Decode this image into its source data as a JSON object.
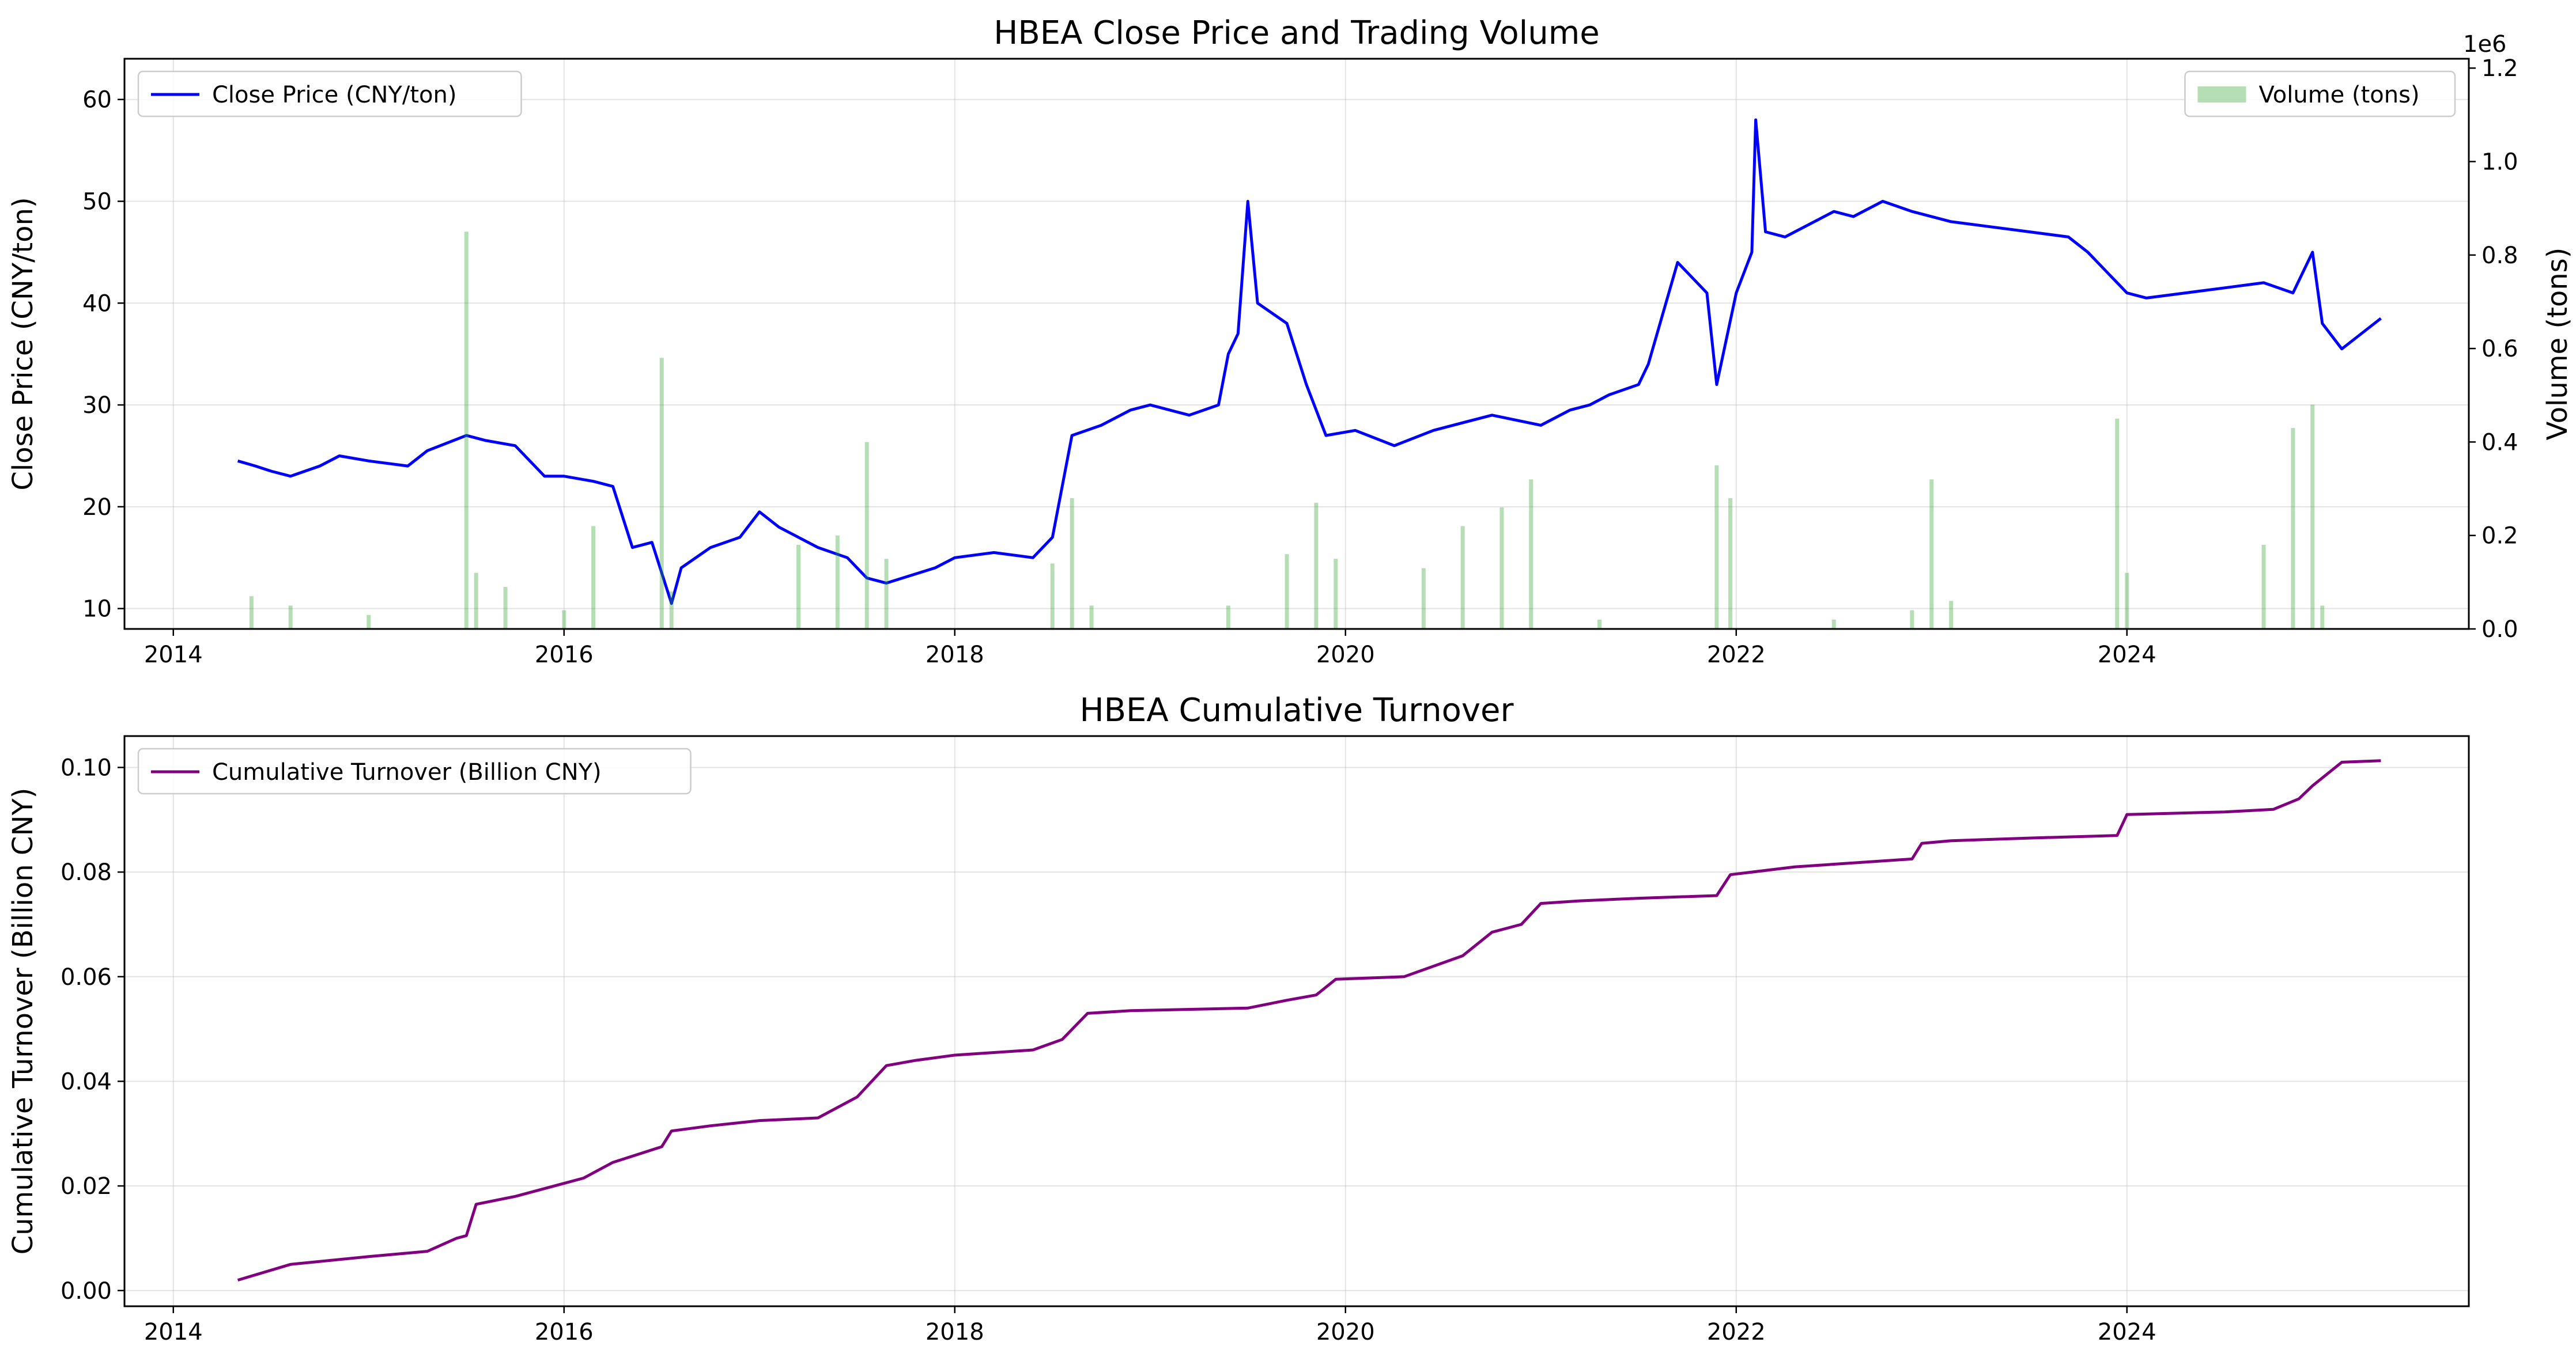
{
  "chart_data": [
    {
      "type": "line",
      "title": "HBEA Close Price and Trading Volume",
      "xlabel": "",
      "ylabel": "Close Price (CNY/ton)",
      "y2label": "Volume (tons)",
      "y2_offset_text": "1e6",
      "xlim": [
        2013.75,
        2025.75
      ],
      "ylim": [
        8,
        64
      ],
      "y2lim": [
        0,
        1.22
      ],
      "x_ticks": [
        2014,
        2016,
        2018,
        2020,
        2022,
        2024
      ],
      "y_ticks": [
        10,
        20,
        30,
        40,
        50,
        60
      ],
      "y2_ticks": [
        0.0,
        0.2,
        0.4,
        0.6,
        0.8,
        1.0,
        1.2
      ],
      "grid": true,
      "legend": [
        {
          "label": "Close Price (CNY/ton)",
          "placement": "upper-left",
          "kind": "line"
        },
        {
          "label": "Volume (tons)",
          "placement": "upper-right",
          "kind": "patch"
        }
      ],
      "series": [
        {
          "name": "Close Price (CNY/ton)",
          "color": "#0000ff",
          "axis": "left",
          "x": [
            2014.33,
            2014.42,
            2014.5,
            2014.6,
            2014.75,
            2014.85,
            2015.0,
            2015.2,
            2015.3,
            2015.5,
            2015.6,
            2015.75,
            2015.9,
            2016.0,
            2016.15,
            2016.25,
            2016.35,
            2016.45,
            2016.55,
            2016.6,
            2016.75,
            2016.9,
            2017.0,
            2017.1,
            2017.3,
            2017.45,
            2017.55,
            2017.65,
            2017.9,
            2018.0,
            2018.2,
            2018.4,
            2018.5,
            2018.6,
            2018.75,
            2018.9,
            2019.0,
            2019.2,
            2019.35,
            2019.4,
            2019.45,
            2019.5,
            2019.55,
            2019.7,
            2019.8,
            2019.9,
            2020.05,
            2020.25,
            2020.45,
            2020.55,
            2020.75,
            2021.0,
            2021.15,
            2021.25,
            2021.35,
            2021.5,
            2021.55,
            2021.7,
            2021.85,
            2021.9,
            2022.0,
            2022.08,
            2022.1,
            2022.15,
            2022.25,
            2022.5,
            2022.6,
            2022.75,
            2022.9,
            2023.1,
            2023.3,
            2023.5,
            2023.7,
            2023.8,
            2023.9,
            2024.0,
            2024.1,
            2024.3,
            2024.5,
            2024.7,
            2024.85,
            2024.95,
            2025.0,
            2025.1,
            2025.3
          ],
          "y": [
            24.5,
            24,
            23.5,
            23,
            24,
            25,
            24.5,
            24,
            25.5,
            27,
            26.5,
            26,
            23,
            23,
            22.5,
            22,
            16,
            16.5,
            10.5,
            14,
            16,
            17,
            19.5,
            18,
            16,
            15,
            13,
            12.5,
            14,
            15,
            15.5,
            15,
            17,
            27,
            28,
            29.5,
            30,
            29,
            30,
            35,
            37,
            50,
            40,
            38,
            32,
            27,
            27.5,
            26,
            27.5,
            28,
            29,
            28,
            29.5,
            30,
            31,
            32,
            34,
            44,
            41,
            32,
            41,
            45,
            58,
            47,
            46.5,
            49,
            48.5,
            50,
            49,
            48,
            47.5,
            47,
            46.5,
            45,
            43,
            41,
            40.5,
            41,
            41.5,
            42,
            41,
            45,
            38,
            35.5,
            38.5
          ]
        },
        {
          "name": "Volume (tons)",
          "color": "#2ca02c",
          "axis": "right",
          "x": [
            2014.4,
            2014.6,
            2015.0,
            2015.5,
            2015.55,
            2015.7,
            2016.0,
            2016.15,
            2016.5,
            2016.55,
            2017.2,
            2017.4,
            2017.55,
            2017.65,
            2018.5,
            2018.6,
            2018.7,
            2019.4,
            2019.7,
            2019.85,
            2019.95,
            2020.4,
            2020.6,
            2020.8,
            2020.95,
            2021.3,
            2021.9,
            2021.97,
            2022.5,
            2022.9,
            2023.0,
            2023.1,
            2023.95,
            2024.0,
            2024.7,
            2024.85,
            2024.95,
            2025.0
          ],
          "y": [
            0.07,
            0.05,
            0.03,
            0.85,
            0.12,
            0.09,
            0.04,
            0.22,
            0.58,
            0.08,
            0.18,
            0.2,
            0.4,
            0.15,
            0.14,
            0.28,
            0.05,
            0.05,
            0.16,
            0.27,
            0.15,
            0.13,
            0.22,
            0.26,
            0.32,
            0.02,
            0.35,
            0.28,
            0.02,
            0.04,
            0.32,
            0.06,
            0.45,
            0.12,
            0.18,
            0.43,
            0.48,
            0.05
          ]
        }
      ]
    },
    {
      "type": "line",
      "title": "HBEA Cumulative Turnover",
      "xlabel": "",
      "ylabel": "Cumulative Turnover (Billion CNY)",
      "xlim": [
        2013.75,
        2025.75
      ],
      "ylim": [
        -0.003,
        0.106
      ],
      "x_ticks": [
        2014,
        2016,
        2018,
        2020,
        2022,
        2024
      ],
      "y_ticks": [
        0.0,
        0.02,
        0.04,
        0.06,
        0.08,
        0.1
      ],
      "y_tick_labels": [
        "0.00",
        "0.02",
        "0.04",
        "0.06",
        "0.08",
        "0.10"
      ],
      "grid": true,
      "legend": [
        {
          "label": "Cumulative Turnover (Billion CNY)",
          "placement": "upper-left",
          "kind": "line"
        }
      ],
      "series": [
        {
          "name": "Cumulative Turnover (Billion CNY)",
          "color": "#800080",
          "x": [
            2014.33,
            2014.6,
            2015.0,
            2015.3,
            2015.45,
            2015.5,
            2015.55,
            2015.75,
            2016.0,
            2016.1,
            2016.25,
            2016.5,
            2016.55,
            2016.75,
            2017.0,
            2017.3,
            2017.5,
            2017.65,
            2017.8,
            2018.0,
            2018.4,
            2018.55,
            2018.68,
            2018.9,
            2019.5,
            2019.7,
            2019.85,
            2019.95,
            2020.3,
            2020.6,
            2020.75,
            2020.9,
            2021.0,
            2021.2,
            2021.5,
            2021.9,
            2021.97,
            2022.3,
            2022.9,
            2022.95,
            2023.1,
            2023.5,
            2023.95,
            2024.0,
            2024.5,
            2024.75,
            2024.88,
            2024.95,
            2025.1,
            2025.3
          ],
          "y": [
            0.002,
            0.005,
            0.0065,
            0.0075,
            0.01,
            0.0105,
            0.0165,
            0.018,
            0.0205,
            0.0215,
            0.0245,
            0.0275,
            0.0305,
            0.0315,
            0.0325,
            0.033,
            0.037,
            0.043,
            0.044,
            0.045,
            0.046,
            0.048,
            0.053,
            0.0535,
            0.054,
            0.0555,
            0.0565,
            0.0595,
            0.06,
            0.064,
            0.0685,
            0.07,
            0.074,
            0.0745,
            0.075,
            0.0755,
            0.0795,
            0.081,
            0.0825,
            0.0855,
            0.086,
            0.0865,
            0.087,
            0.091,
            0.0915,
            0.092,
            0.094,
            0.0965,
            0.101,
            0.1013
          ]
        }
      ]
    }
  ]
}
